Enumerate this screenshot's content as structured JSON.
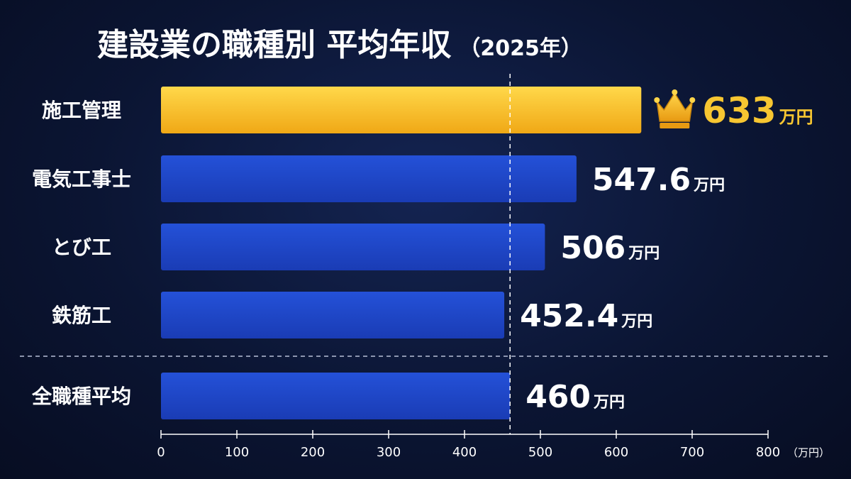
{
  "chart_data": {
    "type": "bar",
    "orientation": "horizontal",
    "title": "建設業の職種別 平均年収",
    "subtitle": "（2025年）",
    "categories": [
      "施工管理",
      "電気工事士",
      "とび工",
      "鉄筋工",
      "全職種平均"
    ],
    "values": [
      633,
      547.6,
      506,
      452.4,
      460
    ],
    "value_labels": [
      "633",
      "547.6",
      "506",
      "452.4",
      "460"
    ],
    "value_unit": "万円",
    "highlight_index": 0,
    "highlight_icon": "crown-icon",
    "average_index": 4,
    "reference_line_value": 460,
    "xlim": [
      0,
      800
    ],
    "x_ticks": [
      0,
      100,
      200,
      300,
      400,
      500,
      600,
      700,
      800
    ],
    "x_tick_labels": [
      "0",
      "100",
      "200",
      "300",
      "400",
      "500",
      "600",
      "700",
      "800"
    ],
    "axis_unit": "（万円）",
    "grid": false,
    "colors": {
      "highlight_bar": "#f5b81e",
      "bar": "#1e46c9",
      "highlight_text": "#f7c631",
      "text": "#ffffff"
    }
  }
}
